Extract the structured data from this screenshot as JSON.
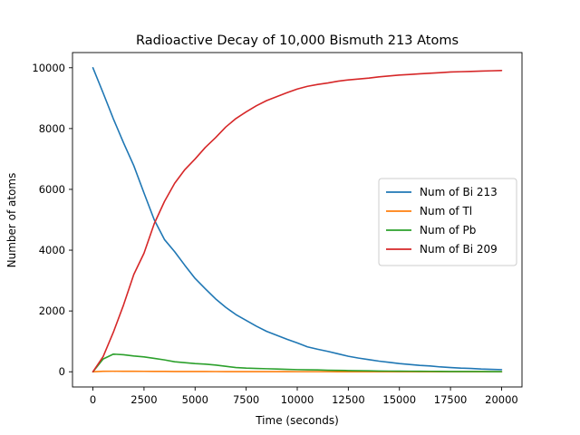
{
  "chart_data": {
    "type": "line",
    "title": "Radioactive Decay of 10,000 Bismuth 213 Atoms",
    "xlabel": "Time (seconds)",
    "ylabel": "Number of atoms",
    "xlim": [
      -1000,
      21000
    ],
    "ylim": [
      -500,
      10500
    ],
    "xticks": [
      0,
      2500,
      5000,
      7500,
      10000,
      12500,
      15000,
      17500,
      20000
    ],
    "yticks": [
      0,
      2000,
      4000,
      6000,
      8000,
      10000
    ],
    "grid": false,
    "legend_position": "center-right",
    "x": [
      0,
      500,
      1000,
      1500,
      2000,
      2500,
      3000,
      3500,
      4000,
      4500,
      5000,
      5500,
      6000,
      6500,
      7000,
      7500,
      8000,
      8500,
      9000,
      9500,
      10000,
      10500,
      11000,
      11500,
      12000,
      12500,
      13000,
      13500,
      14000,
      14500,
      15000,
      15500,
      16000,
      16500,
      17000,
      17500,
      18000,
      18500,
      19000,
      19500,
      20000
    ],
    "series": [
      {
        "name": "Num of Bi 213",
        "color": "#1f77b4",
        "values": [
          10000,
          9170,
          8320,
          7530,
          6780,
          5880,
          5000,
          4350,
          3950,
          3500,
          3070,
          2730,
          2400,
          2120,
          1880,
          1690,
          1500,
          1330,
          1200,
          1070,
          950,
          820,
          740,
          670,
          590,
          510,
          450,
          400,
          350,
          310,
          270,
          240,
          210,
          190,
          160,
          140,
          120,
          110,
          90,
          80,
          70
        ]
      },
      {
        "name": "Num of Tl",
        "color": "#ff7f0e",
        "values": [
          0,
          15,
          18,
          16,
          15,
          14,
          12,
          11,
          10,
          9,
          8,
          8,
          7,
          6,
          6,
          5,
          5,
          4,
          4,
          4,
          3,
          3,
          3,
          3,
          2,
          2,
          2,
          2,
          2,
          2,
          1,
          1,
          1,
          1,
          1,
          1,
          1,
          1,
          1,
          1,
          1
        ]
      },
      {
        "name": "Num of Pb",
        "color": "#2ca02c",
        "values": [
          0,
          420,
          580,
          560,
          520,
          490,
          440,
          390,
          330,
          300,
          270,
          250,
          220,
          180,
          140,
          120,
          110,
          100,
          90,
          80,
          70,
          65,
          60,
          50,
          45,
          40,
          35,
          30,
          25,
          22,
          20,
          18,
          16,
          14,
          12,
          10,
          10,
          8,
          8,
          6,
          5
        ]
      },
      {
        "name": "Num of Bi 209",
        "color": "#d62728",
        "values": [
          0,
          500,
          1300,
          2200,
          3200,
          3900,
          4870,
          5600,
          6200,
          6650,
          7000,
          7380,
          7700,
          8050,
          8330,
          8550,
          8750,
          8920,
          9050,
          9180,
          9300,
          9390,
          9450,
          9500,
          9560,
          9600,
          9630,
          9660,
          9700,
          9730,
          9760,
          9780,
          9800,
          9820,
          9840,
          9860,
          9870,
          9880,
          9890,
          9900,
          9910
        ]
      }
    ]
  }
}
